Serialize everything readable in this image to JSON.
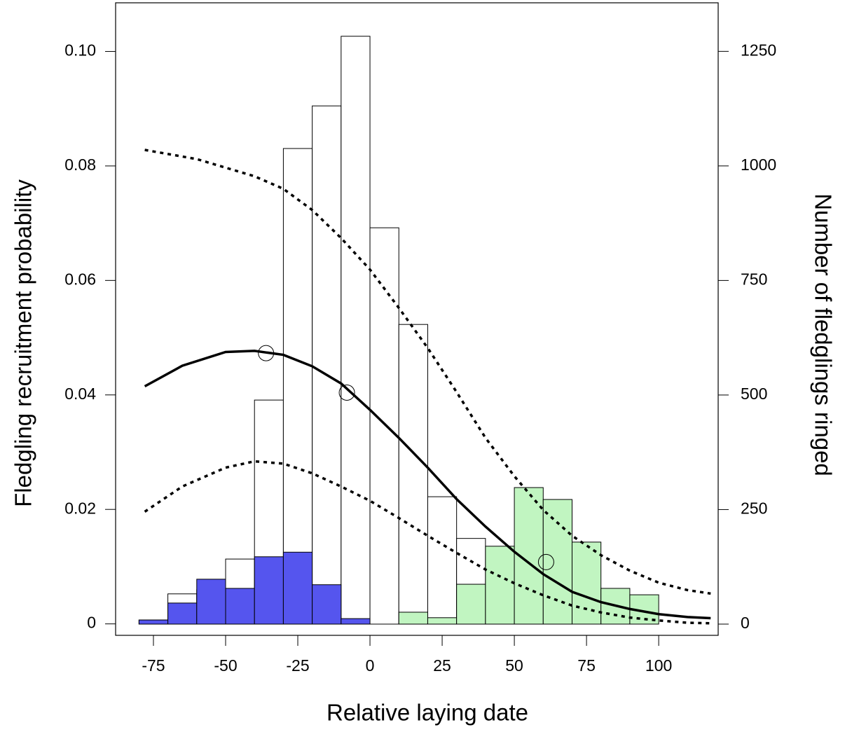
{
  "chart_data": {
    "type": "histogram",
    "x_label": "Relative laying date",
    "y_label": "Fledgling recruitment probability",
    "y2_label": "Number of fledglings ringed",
    "xlim": [
      -88.1,
      120.6
    ],
    "ylim": [
      -0.002,
      0.1085
    ],
    "y2lim": [
      -24.5,
      1356
    ],
    "xticks": [
      -75,
      -50,
      -25,
      0,
      25,
      50,
      75,
      100
    ],
    "yticks": [
      0,
      0.02,
      0.04,
      0.06,
      0.08,
      {
        "value": 0.1,
        "label": "0.10"
      }
    ],
    "y2ticks": [
      0,
      250,
      500,
      750,
      1000,
      1250
    ],
    "bins": [
      -80,
      -70,
      -60,
      -50,
      -40,
      -30,
      -20,
      -10,
      0,
      10,
      20,
      30,
      40,
      50,
      60,
      70,
      80,
      90,
      100
    ],
    "series": [
      {
        "color": "#ffffff",
        "axis": "y2",
        "values": [
          9,
          66,
          75,
          142,
          489,
          1038,
          1131,
          1283,
          865,
          654,
          278,
          187,
          44,
          44,
          6,
          0,
          0,
          0
        ]
      },
      {
        "color": "#5555ee",
        "axis": "y2",
        "values": [
          9,
          46,
          98,
          78,
          147,
          157,
          86,
          12,
          0,
          0,
          0,
          0,
          0,
          0,
          0,
          0,
          0,
          0
        ]
      },
      {
        "color": "#c1f5c1",
        "axis": "y2",
        "values": [
          0,
          0,
          0,
          0,
          0,
          0,
          0,
          0,
          0,
          26,
          14,
          87,
          170,
          298,
          272,
          179,
          78,
          64
        ]
      }
    ],
    "curves": [
      {
        "style": "solid",
        "color": "#000000",
        "x": [
          -78,
          -65,
          -50,
          -40,
          -30,
          -20,
          -10,
          0,
          10,
          20,
          30,
          40,
          50,
          60,
          70,
          80,
          90,
          100,
          110,
          118
        ],
        "values": [
          0.0415,
          0.0451,
          0.0475,
          0.0477,
          0.047,
          0.045,
          0.042,
          0.0374,
          0.0325,
          0.0273,
          0.0218,
          0.017,
          0.0126,
          0.0087,
          0.0056,
          0.0038,
          0.0026,
          0.0017,
          0.0012,
          0.001
        ]
      },
      {
        "style": "dashed",
        "color": "#000000",
        "x": [
          -78,
          -60,
          -40,
          -30,
          -20,
          -10,
          0,
          10,
          20,
          30,
          40,
          50,
          60,
          70,
          80,
          90,
          100,
          110,
          118
        ],
        "values": [
          0.0828,
          0.0812,
          0.0782,
          0.076,
          0.0723,
          0.0674,
          0.0619,
          0.0552,
          0.0482,
          0.0405,
          0.0325,
          0.0258,
          0.0199,
          0.0154,
          0.012,
          0.0093,
          0.0072,
          0.0059,
          0.0053
        ]
      },
      {
        "style": "dashed",
        "color": "#000000",
        "x": [
          -78,
          -65,
          -50,
          -40,
          -30,
          -20,
          -10,
          0,
          10,
          20,
          30,
          40,
          50,
          60,
          70,
          80,
          90,
          100,
          110,
          118
        ],
        "values": [
          0.0196,
          0.024,
          0.0273,
          0.0284,
          0.028,
          0.0263,
          0.024,
          0.0215,
          0.0185,
          0.0154,
          0.0124,
          0.0095,
          0.0071,
          0.005,
          0.0032,
          0.002,
          0.0011,
          0.0006,
          0.0002,
          0.0001
        ]
      }
    ],
    "points": {
      "x": [
        -36,
        -8,
        61
      ],
      "values": [
        0.0473,
        0.0404,
        0.0108
      ]
    }
  }
}
